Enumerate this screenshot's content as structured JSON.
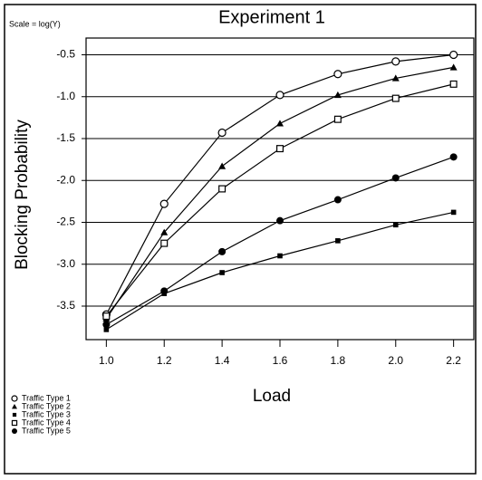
{
  "chart_data": {
    "type": "line",
    "title": "Experiment 1",
    "annotation": "Scale = log(Y)",
    "x_label": "Load",
    "y_label": "Blocking Probability",
    "x": [
      1.0,
      1.2,
      1.4,
      1.6,
      1.8,
      2.0,
      2.2
    ],
    "xlim": [
      0.93,
      2.27
    ],
    "xticks": [
      {
        "value": 1,
        "label": "1.0"
      },
      1.2,
      1.4,
      1.6,
      1.8,
      {
        "value": 2,
        "label": "2.0"
      },
      2.2
    ],
    "ylim": [
      -3.9,
      -0.3
    ],
    "yticks": [
      -0.5,
      {
        "value": -1,
        "label": "-1.0"
      },
      -1.5,
      {
        "value": -2,
        "label": "-2.0"
      },
      -2.5,
      {
        "value": -3,
        "label": "-3.0"
      },
      -3.5
    ],
    "grid": true,
    "legend": "bottom-left",
    "series": [
      {
        "name": "Traffic Type 1",
        "color": "#000000",
        "marker": "circle-open",
        "values": [
          -3.6,
          -2.28,
          -1.43,
          -0.98,
          -0.73,
          -0.58,
          -0.5
        ]
      },
      {
        "name": "Traffic Type 2",
        "color": "#000000",
        "marker": "triangle",
        "values": [
          -3.65,
          -2.62,
          -1.83,
          -1.32,
          -0.98,
          -0.78,
          -0.65
        ]
      },
      {
        "name": "Traffic Type 3",
        "color": "#000000",
        "marker": "square-small",
        "values": [
          -3.78,
          -3.35,
          -3.1,
          -2.9,
          -2.72,
          -2.53,
          -2.38
        ]
      },
      {
        "name": "Traffic Type 4",
        "color": "#000000",
        "marker": "square-open",
        "values": [
          -3.62,
          -2.75,
          -2.1,
          -1.62,
          -1.27,
          -1.02,
          -0.85
        ]
      },
      {
        "name": "Traffic Type 5",
        "color": "#000000",
        "marker": "circle-filled",
        "values": [
          -3.72,
          -3.32,
          -2.85,
          -2.48,
          -2.23,
          -1.97,
          -1.72
        ]
      }
    ]
  }
}
